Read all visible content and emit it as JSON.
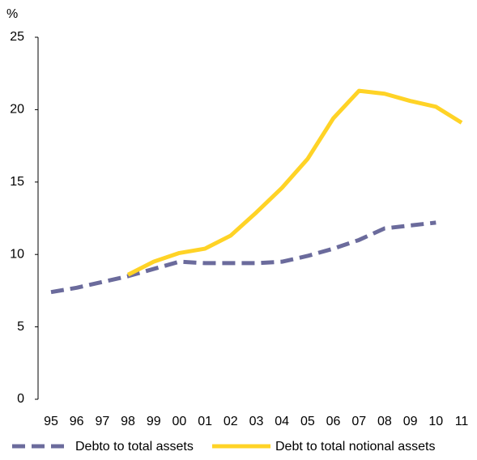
{
  "chart_data": {
    "type": "line",
    "y_unit": "%",
    "categories": [
      "95",
      "96",
      "97",
      "98",
      "99",
      "00",
      "01",
      "02",
      "03",
      "04",
      "05",
      "06",
      "07",
      "08",
      "09",
      "10",
      "11"
    ],
    "series": [
      {
        "name": "Debto to total assets",
        "color": "#6b6b9c",
        "dashed": true,
        "values": [
          7.4,
          7.7,
          8.1,
          8.5,
          9.0,
          9.5,
          9.4,
          9.4,
          9.4,
          9.5,
          9.9,
          10.4,
          11.0,
          11.8,
          12.0,
          12.2,
          null
        ]
      },
      {
        "name": "Debt to total notional assets",
        "color": "#ffd326",
        "dashed": false,
        "values": [
          null,
          null,
          null,
          8.6,
          9.5,
          10.1,
          10.4,
          11.3,
          12.9,
          14.6,
          16.6,
          19.4,
          21.3,
          21.1,
          20.6,
          20.2,
          19.1
        ]
      }
    ],
    "ylim": [
      0,
      25
    ],
    "yticks": [
      0,
      5,
      10,
      15,
      20,
      25
    ]
  }
}
